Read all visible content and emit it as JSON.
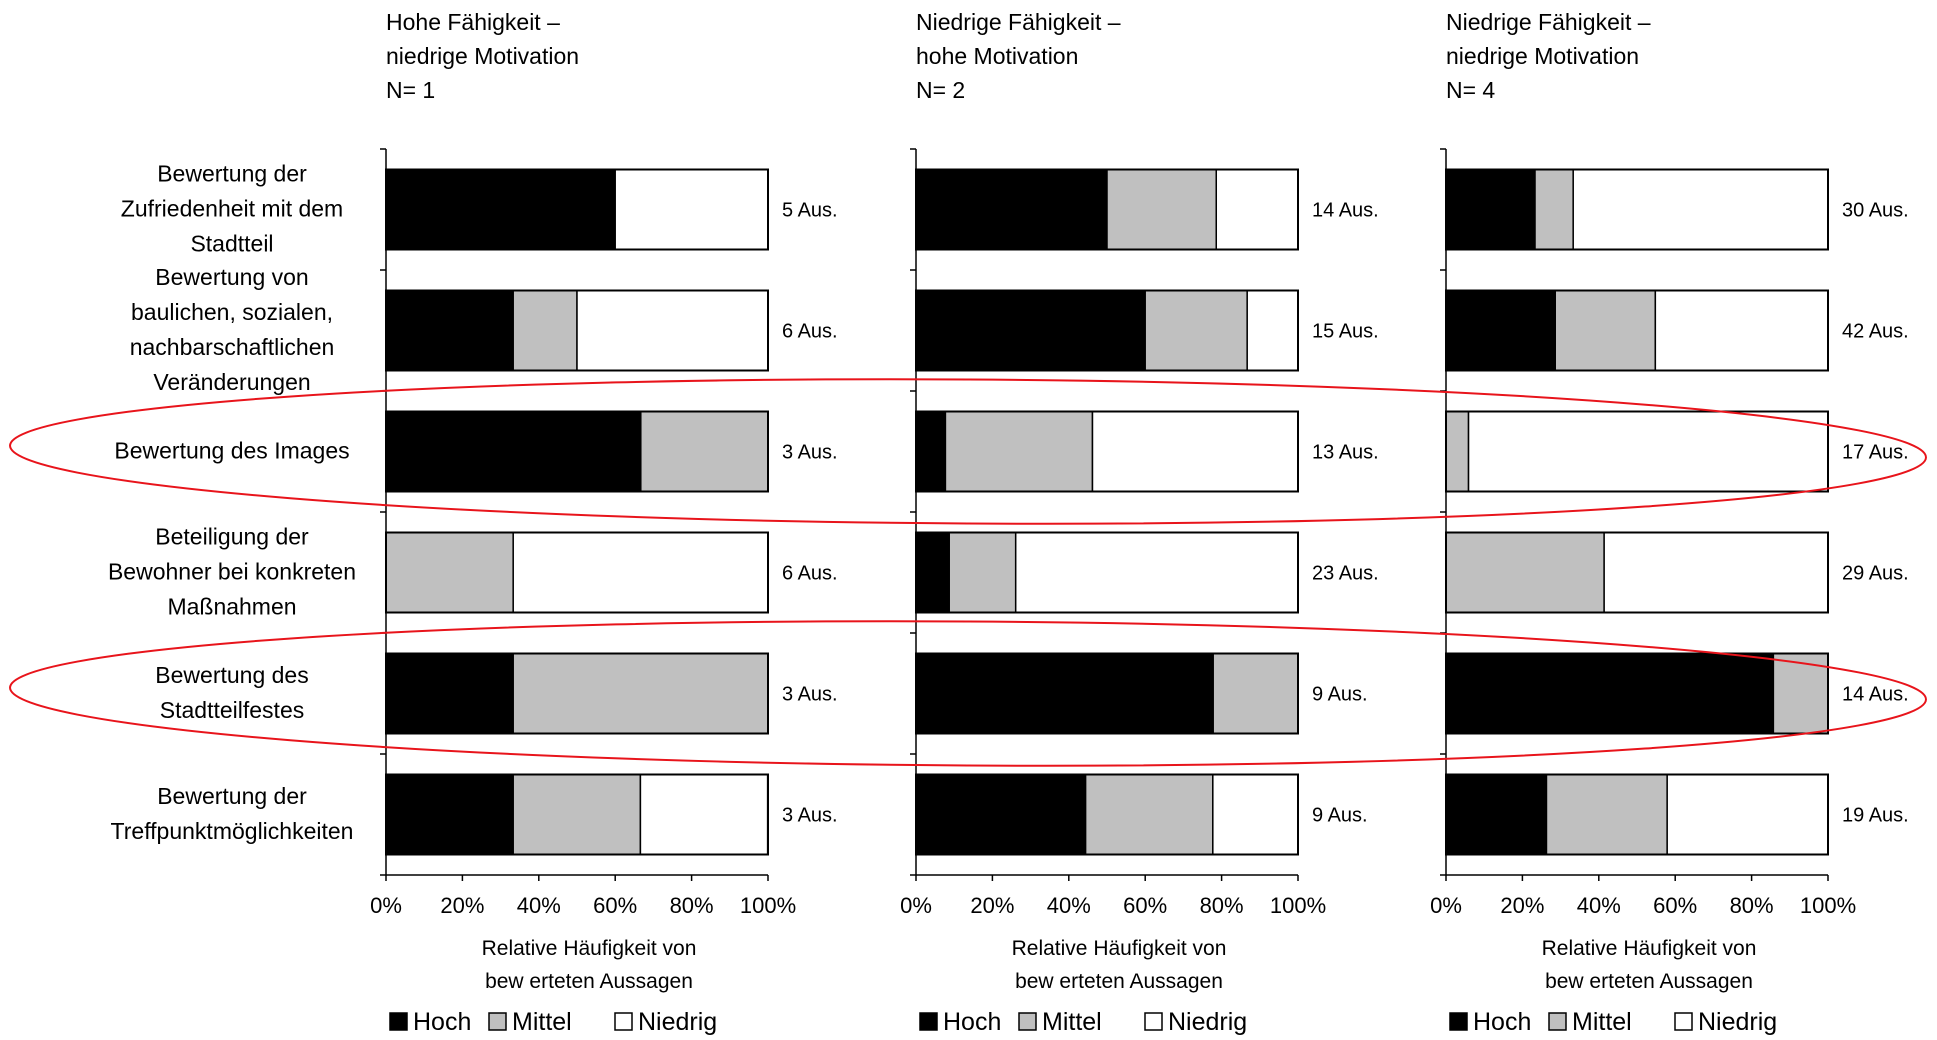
{
  "colors": {
    "Hoch": "#000000",
    "Mittel": "#c0c0c0",
    "Niedrig": "#ffffff",
    "highlight": "#e8141b"
  },
  "categories": [
    "Bewertung der\nZufriedenheit mit dem\nStadtteil",
    "Bewertung von\nbaulichen, sozialen,\nnachbarschaftlichen\nVeränderungen",
    "Bewertung des Images",
    "Beteiligung der\nBewohner bei konkreten\nMaßnahmen",
    "Bewertung des\nStadtteilfestes",
    "Bewertung der\nTreffpunktmöglichkeiten"
  ],
  "highlighted_categories": [
    "Bewertung des Images",
    "Bewertung des Stadtteilfestes"
  ],
  "chart_data": [
    {
      "type": "bar",
      "orientation": "horizontal",
      "stacked": "percent",
      "title": [
        "Hohe Fähigkeit –",
        "niedrige Motivation",
        "N= 1"
      ],
      "xlabel": [
        "Relative Häufigkeit von",
        "bew erteten Aussagen"
      ],
      "xticks": [
        "0%",
        "20%",
        "40%",
        "60%",
        "80%",
        "100%"
      ],
      "xlim": [
        0,
        100
      ],
      "series": [
        {
          "name": "Hoch",
          "values": [
            60,
            33.3,
            66.7,
            0,
            33.3,
            33.3
          ]
        },
        {
          "name": "Mittel",
          "values": [
            0,
            16.7,
            33.3,
            33.3,
            66.7,
            33.3
          ]
        },
        {
          "name": "Niedrig",
          "values": [
            40,
            50,
            0,
            66.7,
            0,
            33.3
          ]
        }
      ],
      "annotations": [
        "5 Aus.",
        "6 Aus.",
        "3 Aus.",
        "6 Aus.",
        "3 Aus.",
        "3 Aus."
      ],
      "legend": [
        "Hoch",
        "Mittel",
        "Niedrig"
      ],
      "legend_position": "bottom"
    },
    {
      "type": "bar",
      "orientation": "horizontal",
      "stacked": "percent",
      "title": [
        "Niedrige Fähigkeit –",
        "hohe Motivation",
        "N= 2"
      ],
      "xlabel": [
        "Relative Häufigkeit von",
        "bew erteten Aussagen"
      ],
      "xticks": [
        "0%",
        "20%",
        "40%",
        "60%",
        "80%",
        "100%"
      ],
      "xlim": [
        0,
        100
      ],
      "series": [
        {
          "name": "Hoch",
          "values": [
            50,
            60,
            7.7,
            8.7,
            77.8,
            44.4
          ]
        },
        {
          "name": "Mittel",
          "values": [
            28.6,
            26.7,
            38.5,
            17.4,
            22.2,
            33.3
          ]
        },
        {
          "name": "Niedrig",
          "values": [
            21.4,
            13.3,
            53.8,
            73.9,
            0,
            22.3
          ]
        }
      ],
      "annotations": [
        "14 Aus.",
        "15 Aus.",
        "13 Aus.",
        "23 Aus.",
        "9 Aus.",
        "9 Aus."
      ],
      "legend": [
        "Hoch",
        "Mittel",
        "Niedrig"
      ],
      "legend_position": "bottom"
    },
    {
      "type": "bar",
      "orientation": "horizontal",
      "stacked": "percent",
      "title": [
        "Niedrige Fähigkeit –",
        "niedrige Motivation",
        "N= 4"
      ],
      "xlabel": [
        "Relative Häufigkeit von",
        "bew erteten Aussagen"
      ],
      "xticks": [
        "0%",
        "20%",
        "40%",
        "60%",
        "80%",
        "100%"
      ],
      "xlim": [
        0,
        100
      ],
      "series": [
        {
          "name": "Hoch",
          "values": [
            23.3,
            28.6,
            0,
            0,
            85.7,
            26.3
          ]
        },
        {
          "name": "Mittel",
          "values": [
            10,
            26.2,
            5.9,
            41.4,
            14.3,
            31.6
          ]
        },
        {
          "name": "Niedrig",
          "values": [
            66.7,
            45.2,
            94.1,
            58.6,
            0,
            42.1
          ]
        }
      ],
      "annotations": [
        "30 Aus.",
        "42 Aus.",
        "17 Aus.",
        "29 Aus.",
        "14 Aus.",
        "19 Aus."
      ],
      "legend": [
        "Hoch",
        "Mittel",
        "Niedrig"
      ],
      "legend_position": "bottom"
    }
  ]
}
